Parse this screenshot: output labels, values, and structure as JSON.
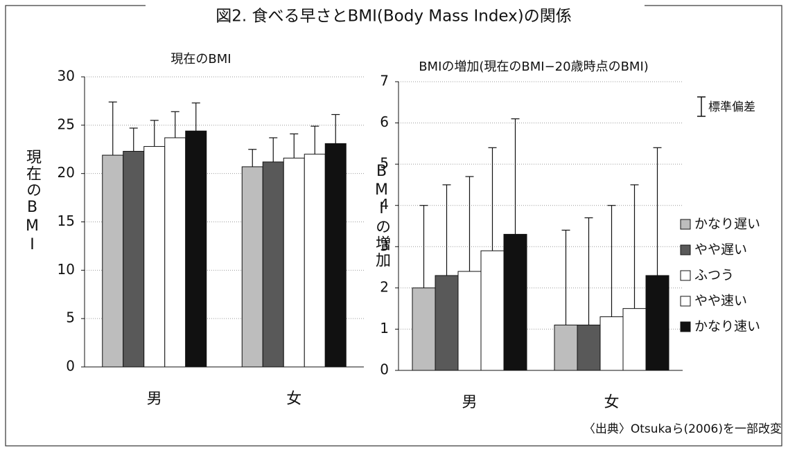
{
  "title": "図2. 食べる早さとBMI(Body Mass Index)の関係",
  "error_note": "標準偏差",
  "source": "〈出典〉Otsukaら(2006)を一部改変",
  "chart_data": [
    {
      "type": "bar",
      "title": "現在のBMI",
      "y_label": "現在のBMI",
      "categories": [
        "男",
        "女"
      ],
      "ylim": [
        0,
        30
      ],
      "yticks": [
        0,
        5,
        10,
        15,
        20,
        25,
        30
      ],
      "grid": true,
      "series": [
        {
          "color": "#bdbdbd",
          "values": [
            21.9,
            20.7
          ],
          "errors": [
            5.5,
            1.8
          ]
        },
        {
          "color": "#595959",
          "values": [
            22.3,
            21.2
          ],
          "errors": [
            2.4,
            2.5
          ]
        },
        {
          "color": "#ffffff",
          "values": [
            22.8,
            21.6
          ],
          "errors": [
            2.7,
            2.5
          ]
        },
        {
          "color": "#ffffff",
          "values": [
            23.7,
            22.0
          ],
          "errors": [
            2.7,
            2.9
          ]
        },
        {
          "color": "#111111",
          "values": [
            24.4,
            23.1
          ],
          "errors": [
            2.9,
            3.0
          ]
        }
      ]
    },
    {
      "type": "bar",
      "title": "BMIの増加(現在のBMI−20歳時点のBMI)",
      "y_label": "BMIの増加",
      "categories": [
        "男",
        "女"
      ],
      "ylim": [
        0,
        7
      ],
      "yticks": [
        0,
        1,
        2,
        3,
        4,
        5,
        6,
        7
      ],
      "grid": true,
      "legend": "right",
      "series": [
        {
          "name": "かなり遅い",
          "color": "#bdbdbd",
          "values": [
            2.0,
            1.1
          ],
          "errors": [
            2.0,
            2.3
          ]
        },
        {
          "name": "やや遅い",
          "color": "#595959",
          "values": [
            2.3,
            1.1
          ],
          "errors": [
            2.2,
            2.6
          ]
        },
        {
          "name": "ふつう",
          "color": "#ffffff",
          "values": [
            2.4,
            1.3
          ],
          "errors": [
            2.3,
            2.7
          ]
        },
        {
          "name": "やや速い",
          "color": "#ffffff",
          "values": [
            2.9,
            1.5
          ],
          "errors": [
            2.5,
            3.0
          ]
        },
        {
          "name": "かなり速い",
          "color": "#111111",
          "values": [
            3.3,
            2.3
          ],
          "errors": [
            2.8,
            3.1
          ]
        }
      ]
    }
  ]
}
